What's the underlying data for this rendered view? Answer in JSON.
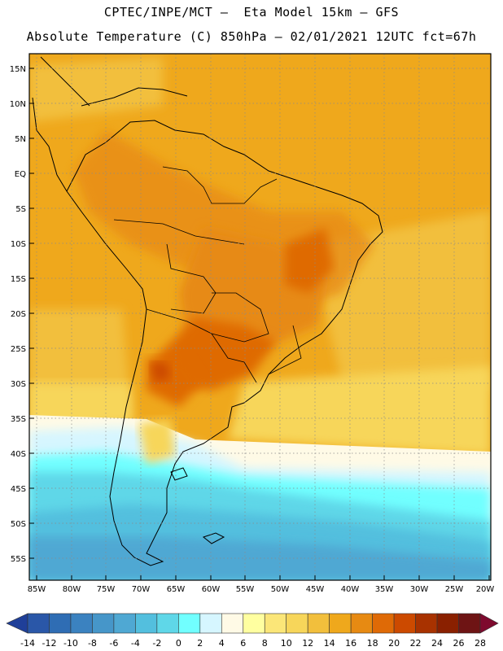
{
  "header": {
    "line1": "CPTEC/INPE/MCT –  Eta Model 15km – GFS",
    "line2": "Absolute Temperature (C) 850hPa – 02/01/2021 12UTC fct=67h"
  },
  "map": {
    "lat_ticks": [
      "15N",
      "10N",
      "5N",
      "EQ",
      "5S",
      "10S",
      "15S",
      "20S",
      "25S",
      "30S",
      "35S",
      "40S",
      "45S",
      "50S",
      "55S"
    ],
    "lon_ticks": [
      "85W",
      "80W",
      "75W",
      "70W",
      "65W",
      "60W",
      "55W",
      "50W",
      "45W",
      "40W",
      "35W",
      "30W",
      "25W",
      "20W"
    ],
    "lon_range": [
      -85,
      -20
    ],
    "lat_range": [
      -58,
      17
    ],
    "grid": "dotted"
  },
  "colorbar": {
    "labels": [
      "-14",
      "-12",
      "-10",
      "-8",
      "-6",
      "-4",
      "-2",
      "0",
      "2",
      "4",
      "6",
      "8",
      "10",
      "12",
      "14",
      "16",
      "18",
      "20",
      "22",
      "24",
      "26",
      "28"
    ],
    "colors": [
      "#1f3f99",
      "#2a57a8",
      "#2f6db4",
      "#3b82c0",
      "#4696c9",
      "#4fa8d3",
      "#53bfde",
      "#5fd7e8",
      "#71ffff",
      "#d6f6ff",
      "#fffae6",
      "#ffffa0",
      "#fbe678",
      "#f7d65a",
      "#f2bf3c",
      "#efa81c",
      "#e78a12",
      "#df6a06",
      "#cc4a00",
      "#a83200",
      "#8a2000",
      "#6e1414",
      "#7e0a2e"
    ]
  }
}
